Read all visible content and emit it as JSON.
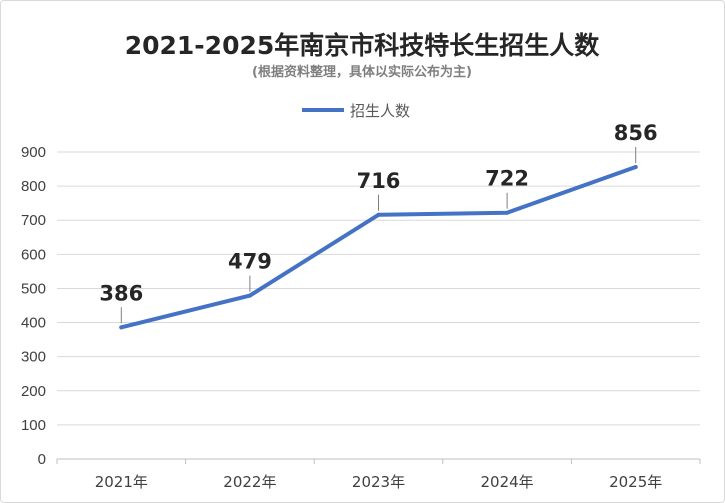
{
  "chart_data": {
    "type": "line",
    "title": "2021-2025年南京市科技特长生招生人数",
    "subtitle": "(根据资料整理，具体以实际公布为主)",
    "categories": [
      "2021年",
      "2022年",
      "2023年",
      "2024年",
      "2025年"
    ],
    "series": [
      {
        "name": "招生人数",
        "values": [
          386,
          479,
          716,
          722,
          856
        ],
        "color": "#4472c4"
      }
    ],
    "data_labels": [
      "386",
      "479",
      "716",
      "722",
      "856"
    ],
    "ylim": [
      0,
      900
    ],
    "yticks": [
      "0",
      "100",
      "200",
      "300",
      "400",
      "500",
      "600",
      "700",
      "800",
      "900"
    ],
    "grid": true,
    "legend_position": "top"
  }
}
